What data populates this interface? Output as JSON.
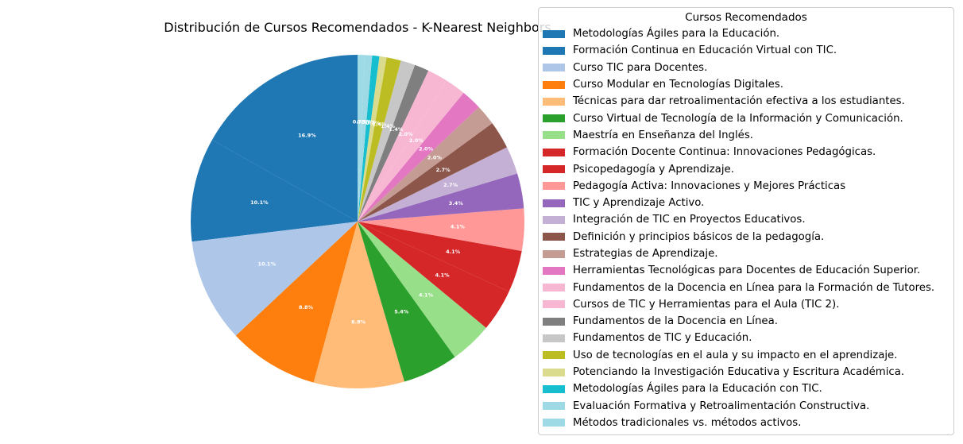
{
  "chart_data": {
    "type": "pie",
    "title": "Distribución de Cursos Recomendados - K-Nearest Neighbors",
    "legend_title": "Cursos Recomendados",
    "legend_position": "upper-right",
    "start_angle_deg": 90,
    "direction": "counterclockwise",
    "slices": [
      {
        "label": "Metodologías Ágiles para la Educación.",
        "value": 16.9,
        "pct_label": "16.9%",
        "color": "#1f77b4"
      },
      {
        "label": "Formación Continua en Educación Virtual con TIC.",
        "value": 10.1,
        "pct_label": "10.1%",
        "color": "#1f77b4"
      },
      {
        "label": "Curso TIC para Docentes.",
        "value": 10.1,
        "pct_label": "10.1%",
        "color": "#aec7e8"
      },
      {
        "label": "Curso Modular en Tecnologías Digitales.",
        "value": 8.8,
        "pct_label": "8.8%",
        "color": "#ff7f0e"
      },
      {
        "label": "Técnicas para dar retroalimentación efectiva a los estudiantes.",
        "value": 8.8,
        "pct_label": "8.8%",
        "color": "#ffbb78"
      },
      {
        "label": "Curso Virtual de Tecnología de la Información y Comunicación.",
        "value": 5.4,
        "pct_label": "5.4%",
        "color": "#2ca02c"
      },
      {
        "label": "Maestría en Enseñanza del Inglés.",
        "value": 4.1,
        "pct_label": "4.1%",
        "color": "#98df8a"
      },
      {
        "label": "Formación Docente Continua: Innovaciones Pedagógicas.",
        "value": 4.1,
        "pct_label": "4.1%",
        "color": "#d62728"
      },
      {
        "label": "Psicopedagogía y Aprendizaje.",
        "value": 4.1,
        "pct_label": "4.1%",
        "color": "#d62728"
      },
      {
        "label": "Pedagogía Activa: Innovaciones y Mejores Prácticas",
        "value": 4.1,
        "pct_label": "4.1%",
        "color": "#ff9896"
      },
      {
        "label": "TIC y Aprendizaje Activo.",
        "value": 3.4,
        "pct_label": "3.4%",
        "color": "#9467bd"
      },
      {
        "label": "Integración de TIC en Proyectos Educativos.",
        "value": 2.7,
        "pct_label": "2.7%",
        "color": "#c5b0d5"
      },
      {
        "label": "Definición y principios básicos de la pedagogía.",
        "value": 2.7,
        "pct_label": "2.7%",
        "color": "#8c564b"
      },
      {
        "label": "Estrategias de Aprendizaje.",
        "value": 2.0,
        "pct_label": "2.0%",
        "color": "#c49c94"
      },
      {
        "label": "Herramientas Tecnológicas para Docentes de Educación Superior.",
        "value": 2.0,
        "pct_label": "2.0%",
        "color": "#e377c2"
      },
      {
        "label": "Fundamentos de la Docencia en Línea para la Formación de Tutores.",
        "value": 2.0,
        "pct_label": "2.0%",
        "color": "#f7b6d2"
      },
      {
        "label": "Cursos de TIC y Herramientas para el Aula (TIC 2).",
        "value": 2.0,
        "pct_label": "2.0%",
        "color": "#f7b6d2"
      },
      {
        "label": "Fundamentos de la Docencia en Línea.",
        "value": 1.4,
        "pct_label": "1.4%",
        "color": "#7f7f7f"
      },
      {
        "label": "Fundamentos de TIC y Educación.",
        "value": 1.4,
        "pct_label": "1.4%",
        "color": "#c7c7c7"
      },
      {
        "label": "Uso de tecnologías en el aula y su impacto en el aprendizaje.",
        "value": 1.4,
        "pct_label": "1.4%",
        "color": "#bcbd22"
      },
      {
        "label": "Potenciando la Investigación Educativa y Escritura Académica.",
        "value": 0.7,
        "pct_label": "0.7%",
        "color": "#dbdb8d"
      },
      {
        "label": "Metodologías Ágiles para la Educación con TIC.",
        "value": 0.7,
        "pct_label": "0.7%",
        "color": "#17becf"
      },
      {
        "label": "Evaluación Formativa y Retroalimentación Constructiva.",
        "value": 0.7,
        "pct_label": "0.7%",
        "color": "#9edae5"
      },
      {
        "label": "Métodos tradicionales vs. métodos activos.",
        "value": 0.7,
        "pct_label": "0.7%",
        "color": "#9edae5"
      }
    ]
  }
}
